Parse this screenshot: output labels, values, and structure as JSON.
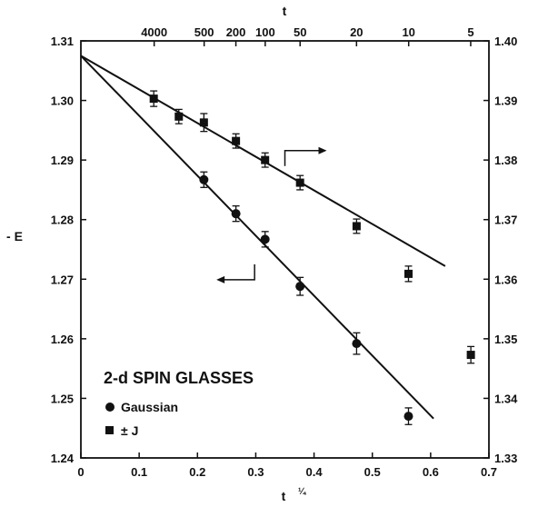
{
  "chart_data": {
    "type": "scatter",
    "title": "",
    "xlabel": "t",
    "xlabel_exponent": "¼",
    "top_label": "t",
    "ylabel": "- E",
    "xlim": [
      0,
      0.7
    ],
    "ylim_left": [
      1.24,
      1.31
    ],
    "ylim_right": [
      1.33,
      1.4
    ],
    "x_ticks": [
      "0",
      "0.1",
      "0.2",
      "0.3",
      "0.4",
      "0.5",
      "0.6",
      "0.7"
    ],
    "y_left_ticks": [
      "1.24",
      "1.25",
      "1.26",
      "1.27",
      "1.28",
      "1.29",
      "1.30",
      "1.31"
    ],
    "y_right_ticks": [
      "1.33",
      "1.34",
      "1.35",
      "1.36",
      "1.37",
      "1.38",
      "1.39",
      "1.40"
    ],
    "top_ticks": [
      {
        "label": "4000",
        "t": 4000
      },
      {
        "label": "500",
        "t": 500
      },
      {
        "label": "200",
        "t": 200
      },
      {
        "label": "100",
        "t": 100
      },
      {
        "label": "50",
        "t": 50
      },
      {
        "label": "20",
        "t": 20
      },
      {
        "label": "10",
        "t": 10
      },
      {
        "label": "5",
        "t": 5
      }
    ],
    "grid": false,
    "legend": {
      "title": "2-d SPIN GLASSES",
      "entries": [
        "Gaussian",
        "± J"
      ],
      "position": "bottom-left"
    },
    "series": [
      {
        "name": "Gaussian",
        "marker": "circle",
        "axis": "left",
        "x": [
          0.211,
          0.266,
          0.316,
          0.376,
          0.473,
          0.562
        ],
        "y": [
          1.2867,
          1.281,
          1.2767,
          1.2688,
          1.2592,
          1.247
        ],
        "err": [
          0.0013,
          0.0013,
          0.0013,
          0.0015,
          0.0018,
          0.0014
        ]
      },
      {
        "name": "± J",
        "marker": "square",
        "axis": "right",
        "x": [
          0.125,
          0.168,
          0.211,
          0.266,
          0.316,
          0.376,
          0.473,
          0.562,
          0.669
        ],
        "y": [
          1.3903,
          1.3873,
          1.3863,
          1.3832,
          1.38,
          1.3762,
          1.3689,
          1.3609,
          1.3473
        ],
        "err": [
          0.0013,
          0.0012,
          0.0015,
          0.0012,
          0.0012,
          0.0012,
          0.0012,
          0.0013,
          0.0014
        ]
      }
    ],
    "fit_lines": [
      {
        "series": "Gaussian",
        "axis": "left",
        "x": [
          0,
          0.605
        ],
        "y": [
          1.3075,
          1.2466
        ]
      },
      {
        "series": "± J",
        "axis": "right",
        "x": [
          0,
          0.625
        ],
        "y": [
          1.3975,
          1.3622
        ]
      }
    ],
    "axis_indicators": [
      {
        "points_to": "right",
        "x": 0.35,
        "y_left": 1.289
      },
      {
        "points_to": "left",
        "x": 0.298,
        "y_left": 1.2725
      }
    ]
  }
}
